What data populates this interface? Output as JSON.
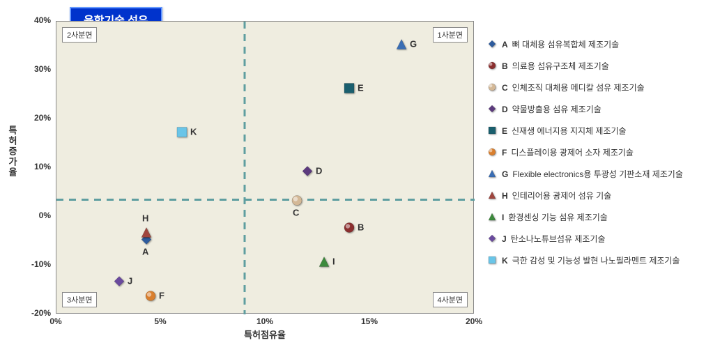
{
  "chart": {
    "title": "융합기술 섬유",
    "x_label": "특허점유율",
    "y_label": "특허증가율",
    "xlim": [
      0,
      20
    ],
    "ylim": [
      -20,
      40
    ],
    "x_ticks": [
      0,
      5,
      10,
      15,
      20
    ],
    "y_ticks": [
      -20,
      -10,
      0,
      10,
      20,
      30,
      40
    ],
    "x_tick_labels": [
      "0%",
      "5%",
      "10%",
      "15%",
      "20%"
    ],
    "y_tick_labels": [
      "-20%",
      "-10%",
      "0%",
      "10%",
      "20%",
      "30%",
      "40%"
    ],
    "x_divider": 9,
    "y_divider": 3.5,
    "background_color": "#efede0",
    "grid_line_color": "#5f9ea0",
    "grid_dash": "10,8",
    "grid_line_width": 3,
    "quadrants": [
      {
        "label": "1사분면",
        "pos": "tr"
      },
      {
        "label": "2사분면",
        "pos": "tl"
      },
      {
        "label": "3사분면",
        "pos": "bl"
      },
      {
        "label": "4사분면",
        "pos": "br"
      }
    ],
    "points": [
      {
        "id": "A",
        "x": 4.3,
        "y": -5,
        "shape": "diamond",
        "color": "#2e5c9e",
        "label_pos": "bottom"
      },
      {
        "id": "B",
        "x": 14,
        "y": -2.5,
        "shape": "circle",
        "color": "#8b2e2e",
        "label_pos": "right"
      },
      {
        "id": "C",
        "x": 11.5,
        "y": 3,
        "shape": "circle",
        "color": "#d4b896",
        "label_pos": "bottom"
      },
      {
        "id": "D",
        "x": 12,
        "y": 9,
        "shape": "diamond",
        "color": "#5c3a7e",
        "label_pos": "right"
      },
      {
        "id": "E",
        "x": 14,
        "y": 26,
        "shape": "square",
        "color": "#1a5f6e",
        "label_pos": "right"
      },
      {
        "id": "F",
        "x": 4.5,
        "y": -16.5,
        "shape": "circle",
        "color": "#d97f2e",
        "label_pos": "right"
      },
      {
        "id": "G",
        "x": 16.5,
        "y": 35,
        "shape": "triangle",
        "color": "#3a6eb5",
        "label_pos": "right"
      },
      {
        "id": "H",
        "x": 4.3,
        "y": -3.5,
        "shape": "triangle",
        "color": "#a0453e",
        "label_pos": "top"
      },
      {
        "id": "I",
        "x": 12.8,
        "y": -9.5,
        "shape": "triangle",
        "color": "#3c8a3c",
        "label_pos": "right"
      },
      {
        "id": "J",
        "x": 3,
        "y": -13.5,
        "shape": "diamond",
        "color": "#6a4a9e",
        "label_pos": "right"
      },
      {
        "id": "K",
        "x": 6,
        "y": 17,
        "shape": "square",
        "color": "#6ac5e8",
        "label_pos": "right"
      }
    ]
  },
  "legend": {
    "items": [
      {
        "id": "A",
        "shape": "diamond",
        "color": "#2e5c9e",
        "text": "뼈 대체용 섬유복합체 제조기술"
      },
      {
        "id": "B",
        "shape": "circle",
        "color": "#8b2e2e",
        "text": "의료용 섬유구조체 제조기술"
      },
      {
        "id": "C",
        "shape": "circle",
        "color": "#d4b896",
        "text": "인체조직 대체용 메디칼 섬유 제조기술"
      },
      {
        "id": "D",
        "shape": "diamond",
        "color": "#5c3a7e",
        "text": "약물방출용 섬유 제조기술"
      },
      {
        "id": "E",
        "shape": "square",
        "color": "#1a5f6e",
        "text": "신재생 에너지용 지지체 제조기술"
      },
      {
        "id": "F",
        "shape": "circle",
        "color": "#d97f2e",
        "text": "디스플레이용 광제어 소자 제조기술"
      },
      {
        "id": "G",
        "shape": "triangle",
        "color": "#3a6eb5",
        "text": "Flexible electronics용 투광성 기판소재 제조기술"
      },
      {
        "id": "H",
        "shape": "triangle",
        "color": "#a0453e",
        "text": "인테리어용 광제어 섬유 기술"
      },
      {
        "id": "I",
        "shape": "triangle",
        "color": "#3c8a3c",
        "text": "환경센싱 기능 섬유 제조기술"
      },
      {
        "id": "J",
        "shape": "diamond",
        "color": "#6a4a9e",
        "text": "탄소나노튜브섬유 제조기술"
      },
      {
        "id": "K",
        "shape": "square",
        "color": "#6ac5e8",
        "text": "극한 감성 및 기능성 발현 나노필라멘트 제조기술"
      }
    ]
  }
}
